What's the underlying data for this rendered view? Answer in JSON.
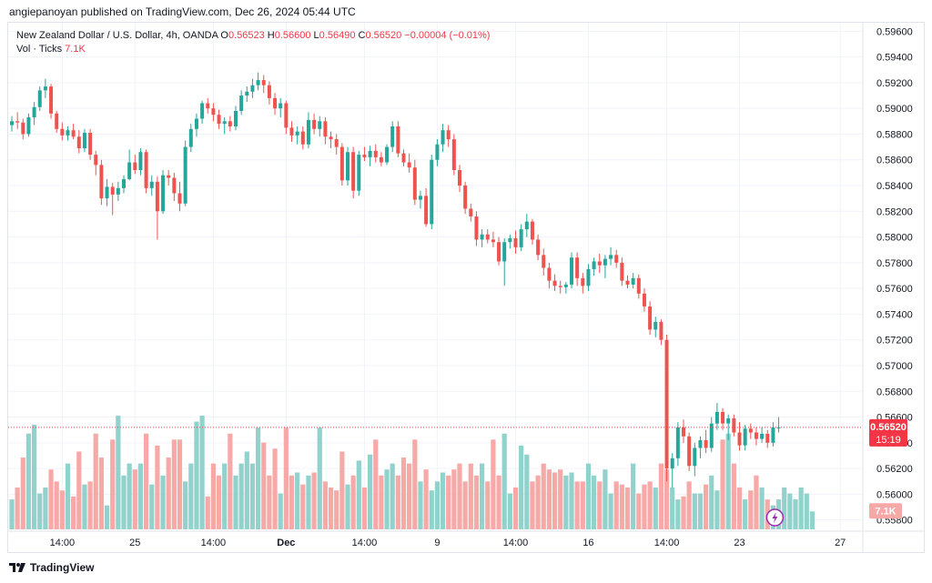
{
  "header": {
    "publisher_line": "angiepanoyan published on TradingView.com, Dec 26, 2024 05:44 UTC"
  },
  "legend": {
    "symbol": "New Zealand Dollar / U.S. Dollar, 4h, OANDA",
    "o_label": "O",
    "o_value": "0.56523",
    "h_label": "H",
    "h_value": "0.56600",
    "l_label": "L",
    "l_value": "0.56490",
    "c_label": "C",
    "c_value": "0.56520",
    "change": "−0.00004 (−0.01%)",
    "vol_label": "Vol · Ticks",
    "vol_value": "7.1K"
  },
  "footer": {
    "brand": "TradingView"
  },
  "chart_data": {
    "type": "candlestick",
    "y_range": [
      0.5572,
      0.5968
    ],
    "y_ticks": [
      "0.59600",
      "0.59400",
      "0.59200",
      "0.59000",
      "0.58800",
      "0.58600",
      "0.58400",
      "0.58200",
      "0.58000",
      "0.57800",
      "0.57600",
      "0.57400",
      "0.57200",
      "0.57000",
      "0.56800",
      "0.56600",
      "0.56400",
      "0.56200",
      "0.56000",
      "0.55800"
    ],
    "x_ticks": [
      {
        "label": "14:00",
        "bar": 9
      },
      {
        "label": "25",
        "bar": 22
      },
      {
        "label": "14:00",
        "bar": 36
      },
      {
        "label": "Dec",
        "bar": 49
      },
      {
        "label": "14:00",
        "bar": 63
      },
      {
        "label": "9",
        "bar": 76
      },
      {
        "label": "14:00",
        "bar": 90
      },
      {
        "label": "16",
        "bar": 103
      },
      {
        "label": "14:00",
        "bar": 117
      },
      {
        "label": "23",
        "bar": 130
      },
      {
        "label": "27",
        "bar": 148
      }
    ],
    "last_price": "0.56520",
    "countdown": "15:19",
    "volume_label": "7.1K",
    "colors": {
      "up": "#26a69a",
      "down": "#ef5350",
      "vol_up": "#92d2cc",
      "vol_down": "#f7a9a7",
      "price_tag": "#f23645"
    },
    "ohlc": [
      [
        0.5887,
        0.5894,
        0.5882,
        0.589
      ],
      [
        0.589,
        0.5897,
        0.5884,
        0.5889
      ],
      [
        0.5889,
        0.5892,
        0.5876,
        0.588
      ],
      [
        0.588,
        0.5896,
        0.5878,
        0.5893
      ],
      [
        0.5893,
        0.5905,
        0.5887,
        0.5901
      ],
      [
        0.5901,
        0.5917,
        0.5898,
        0.5914
      ],
      [
        0.5914,
        0.5923,
        0.5908,
        0.5917
      ],
      [
        0.5917,
        0.5919,
        0.5892,
        0.5896
      ],
      [
        0.5896,
        0.5898,
        0.5881,
        0.5884
      ],
      [
        0.5884,
        0.5889,
        0.5875,
        0.5879
      ],
      [
        0.5879,
        0.5886,
        0.5875,
        0.5883
      ],
      [
        0.5883,
        0.5888,
        0.5876,
        0.5878
      ],
      [
        0.5878,
        0.5883,
        0.5865,
        0.5869
      ],
      [
        0.5869,
        0.5884,
        0.5866,
        0.5881
      ],
      [
        0.5881,
        0.5884,
        0.586,
        0.5864
      ],
      [
        0.5864,
        0.5867,
        0.5848,
        0.5856
      ],
      [
        0.5856,
        0.586,
        0.5825,
        0.583
      ],
      [
        0.583,
        0.5845,
        0.5824,
        0.5839
      ],
      [
        0.5839,
        0.5842,
        0.5817,
        0.5833
      ],
      [
        0.5833,
        0.5843,
        0.5828,
        0.5838
      ],
      [
        0.5838,
        0.5848,
        0.5834,
        0.5845
      ],
      [
        0.5845,
        0.5868,
        0.5844,
        0.5858
      ],
      [
        0.5858,
        0.5864,
        0.5849,
        0.5852
      ],
      [
        0.5852,
        0.5869,
        0.5848,
        0.5866
      ],
      [
        0.5866,
        0.5868,
        0.5834,
        0.5838
      ],
      [
        0.5838,
        0.5848,
        0.5832,
        0.5843
      ],
      [
        0.5843,
        0.5847,
        0.5798,
        0.582
      ],
      [
        0.582,
        0.5852,
        0.5818,
        0.5848
      ],
      [
        0.5848,
        0.5852,
        0.584,
        0.5846
      ],
      [
        0.5846,
        0.585,
        0.5828,
        0.5834
      ],
      [
        0.5834,
        0.5843,
        0.582,
        0.5826
      ],
      [
        0.5826,
        0.5875,
        0.5824,
        0.587
      ],
      [
        0.587,
        0.5888,
        0.5866,
        0.5884
      ],
      [
        0.5884,
        0.5896,
        0.5878,
        0.5892
      ],
      [
        0.5892,
        0.5906,
        0.5888,
        0.5904
      ],
      [
        0.5904,
        0.5908,
        0.5896,
        0.59
      ],
      [
        0.59,
        0.5904,
        0.589,
        0.5895
      ],
      [
        0.5895,
        0.5899,
        0.5884,
        0.5888
      ],
      [
        0.5888,
        0.5893,
        0.588,
        0.589
      ],
      [
        0.589,
        0.5894,
        0.5882,
        0.5886
      ],
      [
        0.5886,
        0.5902,
        0.5883,
        0.5898
      ],
      [
        0.5898,
        0.5914,
        0.5895,
        0.591
      ],
      [
        0.591,
        0.5917,
        0.5905,
        0.5913
      ],
      [
        0.5913,
        0.5923,
        0.5908,
        0.5918
      ],
      [
        0.5918,
        0.5928,
        0.5914,
        0.5922
      ],
      [
        0.5922,
        0.5926,
        0.5912,
        0.5918
      ],
      [
        0.5918,
        0.5921,
        0.5903,
        0.5908
      ],
      [
        0.5908,
        0.5912,
        0.5895,
        0.59
      ],
      [
        0.59,
        0.5908,
        0.5893,
        0.5904
      ],
      [
        0.5904,
        0.5906,
        0.588,
        0.5885
      ],
      [
        0.5885,
        0.589,
        0.5874,
        0.5879
      ],
      [
        0.5879,
        0.5886,
        0.5872,
        0.5882
      ],
      [
        0.5882,
        0.5886,
        0.5868,
        0.5872
      ],
      [
        0.5872,
        0.5897,
        0.5869,
        0.5891
      ],
      [
        0.5891,
        0.5896,
        0.588,
        0.5884
      ],
      [
        0.5884,
        0.5894,
        0.5878,
        0.589
      ],
      [
        0.589,
        0.5893,
        0.5872,
        0.5878
      ],
      [
        0.5878,
        0.5882,
        0.5869,
        0.5876
      ],
      [
        0.5876,
        0.588,
        0.5864,
        0.587
      ],
      [
        0.587,
        0.5873,
        0.584,
        0.5844
      ],
      [
        0.5844,
        0.587,
        0.584,
        0.5866
      ],
      [
        0.5866,
        0.587,
        0.583,
        0.5836
      ],
      [
        0.5836,
        0.5867,
        0.5832,
        0.5864
      ],
      [
        0.5864,
        0.587,
        0.5859,
        0.5862
      ],
      [
        0.5862,
        0.5871,
        0.5855,
        0.5867
      ],
      [
        0.5867,
        0.5872,
        0.5858,
        0.5862
      ],
      [
        0.5862,
        0.5866,
        0.5855,
        0.5858
      ],
      [
        0.5858,
        0.5872,
        0.5856,
        0.587
      ],
      [
        0.587,
        0.589,
        0.5866,
        0.5886
      ],
      [
        0.5886,
        0.589,
        0.5862,
        0.5865
      ],
      [
        0.5865,
        0.5868,
        0.5855,
        0.5858
      ],
      [
        0.5858,
        0.5865,
        0.585,
        0.5854
      ],
      [
        0.5854,
        0.586,
        0.5825,
        0.5829
      ],
      [
        0.5829,
        0.5836,
        0.5822,
        0.5832
      ],
      [
        0.5832,
        0.5838,
        0.5808,
        0.581
      ],
      [
        0.581,
        0.5864,
        0.5806,
        0.586
      ],
      [
        0.586,
        0.5876,
        0.5855,
        0.5872
      ],
      [
        0.5872,
        0.5888,
        0.5866,
        0.5883
      ],
      [
        0.5883,
        0.5887,
        0.587,
        0.5876
      ],
      [
        0.5876,
        0.588,
        0.5848,
        0.5852
      ],
      [
        0.5852,
        0.5856,
        0.5835,
        0.584
      ],
      [
        0.584,
        0.5843,
        0.5818,
        0.5822
      ],
      [
        0.5822,
        0.5826,
        0.5812,
        0.5816
      ],
      [
        0.5816,
        0.582,
        0.5793,
        0.5798
      ],
      [
        0.5798,
        0.5806,
        0.5792,
        0.5802
      ],
      [
        0.5802,
        0.5806,
        0.5795,
        0.5798
      ],
      [
        0.5798,
        0.5804,
        0.5792,
        0.5796
      ],
      [
        0.5796,
        0.58,
        0.5778,
        0.5781
      ],
      [
        0.5781,
        0.5799,
        0.5762,
        0.5796
      ],
      [
        0.5796,
        0.5802,
        0.5791,
        0.5799
      ],
      [
        0.5799,
        0.5805,
        0.5787,
        0.5792
      ],
      [
        0.5792,
        0.581,
        0.5789,
        0.5806
      ],
      [
        0.5806,
        0.5818,
        0.58,
        0.5812
      ],
      [
        0.5812,
        0.5814,
        0.5794,
        0.5798
      ],
      [
        0.5798,
        0.5802,
        0.5782,
        0.5786
      ],
      [
        0.5786,
        0.5791,
        0.577,
        0.5776
      ],
      [
        0.5776,
        0.578,
        0.576,
        0.5766
      ],
      [
        0.5766,
        0.5771,
        0.5758,
        0.5762
      ],
      [
        0.5762,
        0.5766,
        0.5756,
        0.5761
      ],
      [
        0.5761,
        0.5765,
        0.5756,
        0.5763
      ],
      [
        0.5763,
        0.5788,
        0.576,
        0.5784
      ],
      [
        0.5784,
        0.5788,
        0.5762,
        0.5768
      ],
      [
        0.5768,
        0.5772,
        0.5756,
        0.5762
      ],
      [
        0.5762,
        0.5779,
        0.5758,
        0.5775
      ],
      [
        0.5775,
        0.5784,
        0.577,
        0.5781
      ],
      [
        0.5781,
        0.5787,
        0.5772,
        0.5778
      ],
      [
        0.5778,
        0.5786,
        0.5768,
        0.5783
      ],
      [
        0.5783,
        0.5792,
        0.5778,
        0.5786
      ],
      [
        0.5786,
        0.579,
        0.5776,
        0.578
      ],
      [
        0.578,
        0.5784,
        0.5762,
        0.5766
      ],
      [
        0.5766,
        0.577,
        0.576,
        0.5763
      ],
      [
        0.5763,
        0.5772,
        0.576,
        0.5768
      ],
      [
        0.5768,
        0.5771,
        0.5752,
        0.5756
      ],
      [
        0.5756,
        0.576,
        0.5742,
        0.5746
      ],
      [
        0.5746,
        0.575,
        0.5724,
        0.5728
      ],
      [
        0.5728,
        0.5738,
        0.5722,
        0.5734
      ],
      [
        0.5734,
        0.5736,
        0.5716,
        0.572
      ],
      [
        0.572,
        0.5724,
        0.561,
        0.562
      ],
      [
        0.562,
        0.5632,
        0.5605,
        0.5628
      ],
      [
        0.5628,
        0.5656,
        0.5622,
        0.5652
      ],
      [
        0.5652,
        0.5658,
        0.564,
        0.5645
      ],
      [
        0.5645,
        0.5648,
        0.5618,
        0.5622
      ],
      [
        0.5622,
        0.564,
        0.5614,
        0.5636
      ],
      [
        0.5636,
        0.5645,
        0.5628,
        0.5642
      ],
      [
        0.5642,
        0.565,
        0.5632,
        0.5636
      ],
      [
        0.5636,
        0.566,
        0.5633,
        0.5655
      ],
      [
        0.5655,
        0.5671,
        0.565,
        0.5664
      ],
      [
        0.5664,
        0.5667,
        0.565,
        0.5655
      ],
      [
        0.5655,
        0.5662,
        0.5642,
        0.5659
      ],
      [
        0.5659,
        0.5662,
        0.5645,
        0.5648
      ],
      [
        0.5648,
        0.5656,
        0.5634,
        0.5638
      ],
      [
        0.5638,
        0.5654,
        0.5634,
        0.5651
      ],
      [
        0.5651,
        0.5655,
        0.5643,
        0.5648
      ],
      [
        0.5648,
        0.5652,
        0.5638,
        0.5643
      ],
      [
        0.5643,
        0.5652,
        0.564,
        0.5647
      ],
      [
        0.5647,
        0.565,
        0.5636,
        0.564
      ],
      [
        0.564,
        0.5656,
        0.5637,
        0.5652
      ],
      [
        0.5652,
        0.566,
        0.5648,
        0.5652
      ]
    ],
    "volume": [
      10,
      14,
      24,
      32,
      35,
      12,
      14,
      20,
      16,
      13,
      22,
      11,
      26,
      15,
      16,
      32,
      24,
      8,
      30,
      38,
      18,
      22,
      20,
      22,
      32,
      15,
      28,
      18,
      24,
      30,
      30,
      16,
      22,
      36,
      38,
      11,
      22,
      18,
      22,
      32,
      18,
      22,
      26,
      22,
      34,
      29,
      18,
      27,
      12,
      34,
      18,
      19,
      15,
      18,
      19,
      34,
      16,
      14,
      13,
      26,
      15,
      18,
      23,
      14,
      25,
      30,
      18,
      20,
      22,
      18,
      24,
      22,
      30,
      16,
      20,
      13,
      16,
      19,
      18,
      20,
      22,
      16,
      22,
      18,
      22,
      16,
      30,
      18,
      32,
      12,
      14,
      28,
      25,
      16,
      18,
      22,
      20,
      19,
      20,
      18,
      19,
      16,
      16,
      22,
      18,
      16,
      20,
      12,
      16,
      15,
      14,
      22,
      12,
      15,
      16,
      14,
      22,
      20,
      14,
      10,
      11,
      16,
      12,
      12,
      15,
      18,
      13,
      30,
      32,
      22,
      14,
      10,
      13,
      18,
      14,
      10,
      8,
      10,
      14,
      12,
      10,
      14,
      12,
      6
    ]
  }
}
